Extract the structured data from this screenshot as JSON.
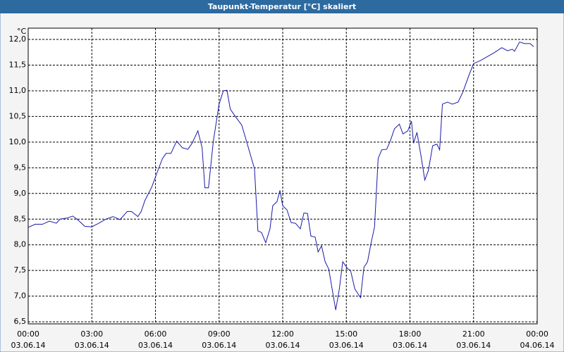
{
  "chart_data": {
    "type": "line",
    "title": "Taupunkt-Temperatur [°C] skaliert",
    "y_unit": "°C",
    "xlim": [
      0,
      24
    ],
    "ylim": [
      6.46,
      12.22
    ],
    "grid": true,
    "xticks": [
      {
        "value": 0,
        "label": [
          "00:00",
          "03.06.14"
        ]
      },
      {
        "value": 3,
        "label": [
          "03:00",
          "03.06.14"
        ]
      },
      {
        "value": 6,
        "label": [
          "06:00",
          "03.06.14"
        ]
      },
      {
        "value": 9,
        "label": [
          "09:00",
          "03.06.14"
        ]
      },
      {
        "value": 12,
        "label": [
          "12:00",
          "03.06.14"
        ]
      },
      {
        "value": 15,
        "label": [
          "15:00",
          "03.06.14"
        ]
      },
      {
        "value": 18,
        "label": [
          "18:00",
          "03.06.14"
        ]
      },
      {
        "value": 21,
        "label": [
          "21:00",
          "03.06.14"
        ]
      },
      {
        "value": 24,
        "label": [
          "00:00",
          "04.06.14"
        ]
      }
    ],
    "yticks": [
      {
        "value": 6.5,
        "label": "6,5"
      },
      {
        "value": 7,
        "label": "7,0"
      },
      {
        "value": 7.5,
        "label": "7,5"
      },
      {
        "value": 8,
        "label": "8,0"
      },
      {
        "value": 8.5,
        "label": "8,5"
      },
      {
        "value": 9,
        "label": "9,0"
      },
      {
        "value": 9.5,
        "label": "9,5"
      },
      {
        "value": 10,
        "label": "10,0"
      },
      {
        "value": 10.5,
        "label": "10,5"
      },
      {
        "value": 11,
        "label": "11,0"
      },
      {
        "value": 11.5,
        "label": "11,5"
      },
      {
        "value": 12,
        "label": "12,0"
      }
    ],
    "x": [
      0,
      0.33,
      0.67,
      1,
      1.33,
      1.5,
      1.83,
      2.1,
      2.33,
      2.67,
      3,
      3.33,
      3.67,
      4,
      4.33,
      4.67,
      4.87,
      5.17,
      5.33,
      5.5,
      5.83,
      6.07,
      6.33,
      6.5,
      6.73,
      7,
      7.27,
      7.53,
      7.73,
      8,
      8.2,
      8.33,
      8.5,
      8.73,
      9,
      9.2,
      9.37,
      9.53,
      9.77,
      10.07,
      10.27,
      10.5,
      10.67,
      10.83,
      11,
      11.2,
      11.4,
      11.53,
      11.73,
      11.87,
      12,
      12.2,
      12.4,
      12.6,
      12.83,
      13,
      13.17,
      13.33,
      13.53,
      13.67,
      13.83,
      14,
      14.17,
      14.33,
      14.5,
      14.67,
      14.83,
      15.07,
      15.2,
      15.4,
      15.67,
      15.83,
      16,
      16.17,
      16.33,
      16.5,
      16.67,
      16.9,
      17.07,
      17.27,
      17.5,
      17.67,
      17.9,
      18.07,
      18.17,
      18.33,
      18.53,
      18.7,
      18.87,
      19.07,
      19.27,
      19.4,
      19.53,
      19.77,
      20,
      20.27,
      20.5,
      20.77,
      21,
      21.33,
      21.67,
      22,
      22.33,
      22.6,
      22.83,
      22.93,
      23.17,
      23.4,
      23.67,
      23.83
    ],
    "series": [
      {
        "name": "Taupunkt-Temperatur",
        "color": "#1a1aa8",
        "values": [
          8.34,
          8.4,
          8.4,
          8.46,
          8.42,
          8.5,
          8.52,
          8.56,
          8.49,
          8.36,
          8.35,
          8.42,
          8.5,
          8.55,
          8.49,
          8.65,
          8.65,
          8.55,
          8.65,
          8.86,
          9.13,
          9.4,
          9.68,
          9.78,
          9.78,
          10.02,
          9.89,
          9.86,
          9.98,
          10.22,
          9.89,
          9.11,
          9.11,
          10.02,
          10.74,
          11.0,
          11.01,
          10.64,
          10.5,
          10.33,
          10.05,
          9.72,
          9.48,
          8.27,
          8.24,
          8.04,
          8.31,
          8.76,
          8.84,
          9.06,
          8.76,
          8.68,
          8.43,
          8.42,
          8.31,
          8.62,
          8.61,
          8.17,
          8.15,
          7.86,
          7.98,
          7.67,
          7.53,
          7.14,
          6.73,
          7.14,
          7.67,
          7.53,
          7.5,
          7.14,
          6.97,
          7.56,
          7.67,
          8.04,
          8.35,
          9.68,
          9.85,
          9.86,
          10.02,
          10.26,
          10.35,
          10.16,
          10.22,
          10.41,
          9.98,
          10.19,
          9.71,
          9.26,
          9.45,
          9.93,
          9.96,
          9.85,
          10.74,
          10.78,
          10.74,
          10.78,
          10.98,
          11.29,
          11.53,
          11.59,
          11.67,
          11.75,
          11.84,
          11.78,
          11.81,
          11.77,
          11.95,
          11.92,
          11.92,
          11.86
        ]
      }
    ]
  }
}
